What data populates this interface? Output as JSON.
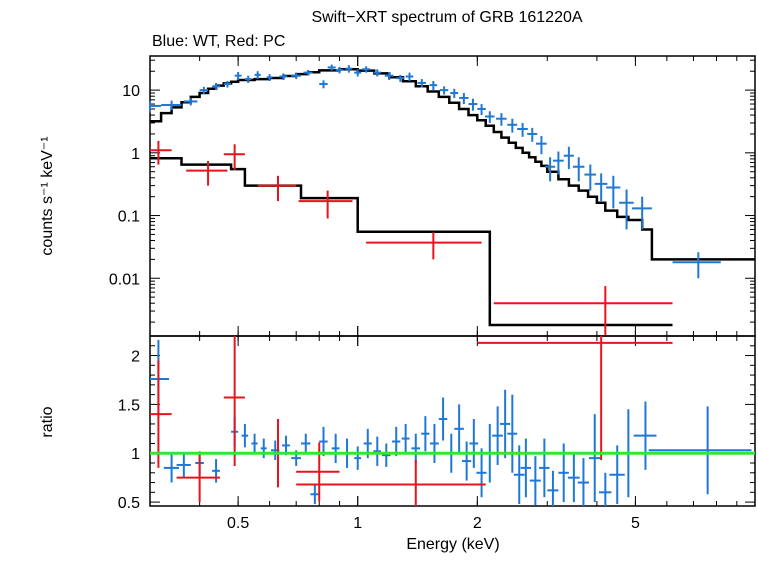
{
  "title": "Swift−XRT spectrum of GRB 161220A",
  "subtitle": "Blue: WT, Red: PC",
  "colors": {
    "wt": "#1f78d6",
    "pc": "#e8141c",
    "model": "#000000",
    "unity": "#33e633"
  },
  "chart_data": [
    {
      "type": "scatter",
      "panel": "spectrum",
      "title": "Swift−XRT spectrum of GRB 161220A",
      "xlabel": "Energy (keV)",
      "ylabel": "counts s⁻¹ keV⁻¹",
      "xscale": "log",
      "yscale": "log",
      "xlim": [
        0.3,
        10
      ],
      "ylim": [
        0.0012,
        35
      ],
      "x_ticks": [
        0.5,
        1,
        2,
        5
      ],
      "x_tick_labels": [
        "0.5",
        "1",
        "2",
        "5"
      ],
      "y_ticks": [
        0.01,
        0.1,
        1,
        10
      ],
      "y_tick_labels": [
        "0.01",
        "0.1",
        "1",
        "10"
      ],
      "series": [
        {
          "name": "WT",
          "color": "#1f78d6",
          "points": [
            [
              0.3,
              5.6,
              0.02,
              1.2
            ],
            [
              0.34,
              5.8,
              0.02,
              1.0
            ],
            [
              0.38,
              6.6,
              0.015,
              0.9
            ],
            [
              0.41,
              10.0,
              0.01,
              1.3
            ],
            [
              0.44,
              11.5,
              0.01,
              1.5
            ],
            [
              0.47,
              12.5,
              0.01,
              1.5
            ],
            [
              0.5,
              17.0,
              0.01,
              2.5
            ],
            [
              0.53,
              15.0,
              0.01,
              2.0
            ],
            [
              0.56,
              17.5,
              0.01,
              2.5
            ],
            [
              0.6,
              16.0,
              0.01,
              2.0
            ],
            [
              0.65,
              16.5,
              0.015,
              2.0
            ],
            [
              0.7,
              17.0,
              0.02,
              2.0
            ],
            [
              0.75,
              19.0,
              0.02,
              2.0
            ],
            [
              0.82,
              12.5,
              0.02,
              1.8
            ],
            [
              0.86,
              23.0,
              0.02,
              2.5
            ],
            [
              0.9,
              21.0,
              0.02,
              2.5
            ],
            [
              0.95,
              22.0,
              0.02,
              3.0
            ],
            [
              1.0,
              19.0,
              0.02,
              2.5
            ],
            [
              1.05,
              21.5,
              0.025,
              2.5
            ],
            [
              1.12,
              19.0,
              0.025,
              2.5
            ],
            [
              1.2,
              17.0,
              0.03,
              2.5
            ],
            [
              1.28,
              15.5,
              0.03,
              2.0
            ],
            [
              1.35,
              16.5,
              0.03,
              2.5
            ],
            [
              1.45,
              13.0,
              0.035,
              2.0
            ],
            [
              1.55,
              12.0,
              0.035,
              2.0
            ],
            [
              1.65,
              10.0,
              0.04,
              1.5
            ],
            [
              1.75,
              9.0,
              0.04,
              1.5
            ],
            [
              1.85,
              7.5,
              0.05,
              1.5
            ],
            [
              1.95,
              6.0,
              0.05,
              1.3
            ],
            [
              2.05,
              5.0,
              0.05,
              1.0
            ],
            [
              2.15,
              3.8,
              0.06,
              0.8
            ],
            [
              2.3,
              3.5,
              0.07,
              0.8
            ],
            [
              2.45,
              2.8,
              0.07,
              0.7
            ],
            [
              2.6,
              2.4,
              0.08,
              0.6
            ],
            [
              2.75,
              2.0,
              0.08,
              0.5
            ],
            [
              2.9,
              1.4,
              0.09,
              0.45
            ],
            [
              3.05,
              0.6,
              0.09,
              0.25
            ],
            [
              3.2,
              0.75,
              0.1,
              0.3
            ],
            [
              3.4,
              0.9,
              0.1,
              0.35
            ],
            [
              3.6,
              0.6,
              0.12,
              0.25
            ],
            [
              3.85,
              0.45,
              0.13,
              0.2
            ],
            [
              4.1,
              0.32,
              0.15,
              0.15
            ],
            [
              4.4,
              0.28,
              0.18,
              0.15
            ],
            [
              4.75,
              0.16,
              0.2,
              0.1
            ],
            [
              5.2,
              0.13,
              0.3,
              0.07
            ],
            [
              7.2,
              0.018,
              1.0,
              0.008
            ]
          ]
        },
        {
          "name": "PC",
          "color": "#e8141c",
          "points": [
            [
              0.315,
              1.1,
              0.025,
              0.45
            ],
            [
              0.42,
              0.52,
              0.05,
              0.22
            ],
            [
              0.49,
              0.95,
              0.03,
              0.42
            ],
            [
              0.63,
              0.3,
              0.07,
              0.13
            ],
            [
              0.84,
              0.17,
              0.13,
              0.08
            ],
            [
              1.55,
              0.037,
              0.5,
              0.017
            ],
            [
              4.2,
              0.004,
              2.0,
              0.0035
            ]
          ]
        },
        {
          "name": "model",
          "color": "#000000",
          "step_x": [
            0.3,
            0.32,
            0.34,
            0.36,
            0.38,
            0.4,
            0.42,
            0.44,
            0.46,
            0.48,
            0.5,
            0.55,
            0.6,
            0.65,
            0.7,
            0.75,
            0.8,
            0.9,
            1.0,
            1.1,
            1.2,
            1.3,
            1.4,
            1.5,
            1.6,
            1.7,
            1.8,
            1.9,
            2.0,
            2.1,
            2.2,
            2.3,
            2.4,
            2.5,
            2.6,
            2.7,
            2.8,
            2.9,
            3.0,
            3.2,
            3.4,
            3.6,
            3.8,
            4.0,
            4.2,
            4.5,
            4.8,
            5.2,
            5.5,
            10.0
          ],
          "step_y": [
            3.2,
            4.3,
            5.3,
            6.4,
            7.8,
            9.0,
            10.5,
            11.8,
            12.8,
            13.6,
            14.5,
            15.0,
            15.6,
            16.8,
            18.0,
            19.3,
            20.6,
            21.5,
            20.5,
            18.5,
            16.0,
            13.8,
            11.5,
            9.5,
            7.8,
            6.3,
            5.0,
            4.0,
            3.3,
            2.7,
            2.15,
            1.75,
            1.45,
            1.2,
            1.0,
            0.85,
            0.72,
            0.62,
            0.5,
            0.38,
            0.3,
            0.25,
            0.2,
            0.16,
            0.12,
            0.095,
            0.085,
            0.06,
            0.02
          ],
          "pc_step_x": [
            0.3,
            0.36,
            0.48,
            0.52,
            0.72,
            1.0,
            2.15,
            6.2
          ],
          "pc_step_y": [
            0.82,
            0.65,
            0.55,
            0.3,
            0.19,
            0.055,
            0.0018
          ]
        }
      ]
    },
    {
      "type": "scatter",
      "panel": "ratio",
      "xlabel": "Energy (keV)",
      "ylabel": "ratio",
      "xscale": "log",
      "xlim": [
        0.3,
        10
      ],
      "ylim": [
        0.46,
        2.2
      ],
      "x_ticks": [
        0.5,
        1,
        2,
        5
      ],
      "x_tick_labels": [
        "0.5",
        "1",
        "2",
        "5"
      ],
      "y_ticks": [
        0.5,
        1,
        1.5,
        2
      ],
      "y_tick_labels": [
        "0.5",
        "1",
        "1.5",
        "2"
      ],
      "reference_line": 1.0,
      "series": [
        {
          "name": "WT",
          "color": "#1f78d6",
          "points": [
            [
              0.315,
              1.76,
              0.02,
              0.4
            ],
            [
              0.34,
              0.85,
              0.015,
              0.15
            ],
            [
              0.365,
              0.88,
              0.015,
              0.12
            ],
            [
              0.4,
              0.9,
              0.01,
              0.12
            ],
            [
              0.44,
              0.82,
              0.01,
              0.12
            ],
            [
              0.49,
              1.22,
              0.01,
              0.15
            ],
            [
              0.52,
              1.18,
              0.01,
              0.12
            ],
            [
              0.55,
              1.1,
              0.01,
              0.1
            ],
            [
              0.58,
              1.05,
              0.01,
              0.1
            ],
            [
              0.62,
              1.03,
              0.015,
              0.1
            ],
            [
              0.66,
              1.08,
              0.015,
              0.1
            ],
            [
              0.7,
              0.95,
              0.02,
              0.08
            ],
            [
              0.74,
              1.1,
              0.02,
              0.1
            ],
            [
              0.78,
              0.58,
              0.02,
              0.1
            ],
            [
              0.82,
              1.12,
              0.02,
              0.15
            ],
            [
              0.88,
              1.05,
              0.02,
              0.15
            ],
            [
              0.94,
              1.0,
              0.02,
              0.15
            ],
            [
              1.0,
              0.95,
              0.02,
              0.12
            ],
            [
              1.06,
              1.1,
              0.025,
              0.15
            ],
            [
              1.12,
              1.02,
              0.025,
              0.15
            ],
            [
              1.18,
              0.98,
              0.03,
              0.12
            ],
            [
              1.25,
              1.12,
              0.03,
              0.15
            ],
            [
              1.32,
              1.15,
              0.03,
              0.15
            ],
            [
              1.4,
              1.05,
              0.035,
              0.15
            ],
            [
              1.48,
              1.2,
              0.035,
              0.18
            ],
            [
              1.56,
              1.1,
              0.04,
              0.2
            ],
            [
              1.64,
              1.35,
              0.04,
              0.22
            ],
            [
              1.72,
              1.0,
              0.04,
              0.2
            ],
            [
              1.8,
              1.25,
              0.05,
              0.25
            ],
            [
              1.88,
              0.92,
              0.05,
              0.2
            ],
            [
              1.96,
              1.1,
              0.05,
              0.25
            ],
            [
              2.05,
              0.8,
              0.06,
              0.25
            ],
            [
              2.15,
              1.0,
              0.06,
              0.3
            ],
            [
              2.25,
              1.18,
              0.07,
              0.3
            ],
            [
              2.35,
              1.3,
              0.07,
              0.35
            ],
            [
              2.45,
              1.2,
              0.07,
              0.4
            ],
            [
              2.55,
              0.78,
              0.08,
              0.3
            ],
            [
              2.65,
              0.85,
              0.08,
              0.3
            ],
            [
              2.8,
              0.72,
              0.09,
              0.25
            ],
            [
              2.95,
              0.85,
              0.09,
              0.3
            ],
            [
              3.1,
              0.62,
              0.1,
              0.2
            ],
            [
              3.3,
              0.8,
              0.1,
              0.3
            ],
            [
              3.5,
              0.75,
              0.12,
              0.25
            ],
            [
              3.7,
              0.7,
              0.12,
              0.25
            ],
            [
              3.95,
              0.95,
              0.13,
              0.45
            ],
            [
              4.2,
              0.6,
              0.15,
              0.2
            ],
            [
              4.5,
              0.78,
              0.2,
              0.3
            ],
            [
              4.8,
              1.0,
              0.25,
              0.45
            ],
            [
              5.3,
              1.18,
              0.35,
              0.35
            ],
            [
              7.6,
              1.03,
              2.2,
              0.45
            ]
          ]
        },
        {
          "name": "PC",
          "color": "#e8141c",
          "points": [
            [
              0.315,
              1.4,
              0.025,
              0.55
            ],
            [
              0.4,
              0.75,
              0.05,
              0.25
            ],
            [
              0.49,
              1.57,
              0.03,
              0.7
            ],
            [
              0.63,
              1.0,
              0.07,
              0.35
            ],
            [
              0.8,
              0.81,
              0.1,
              0.3
            ],
            [
              1.4,
              0.68,
              0.7,
              0.25
            ],
            [
              4.1,
              2.13,
              2.1,
              1.2
            ]
          ]
        }
      ]
    }
  ]
}
